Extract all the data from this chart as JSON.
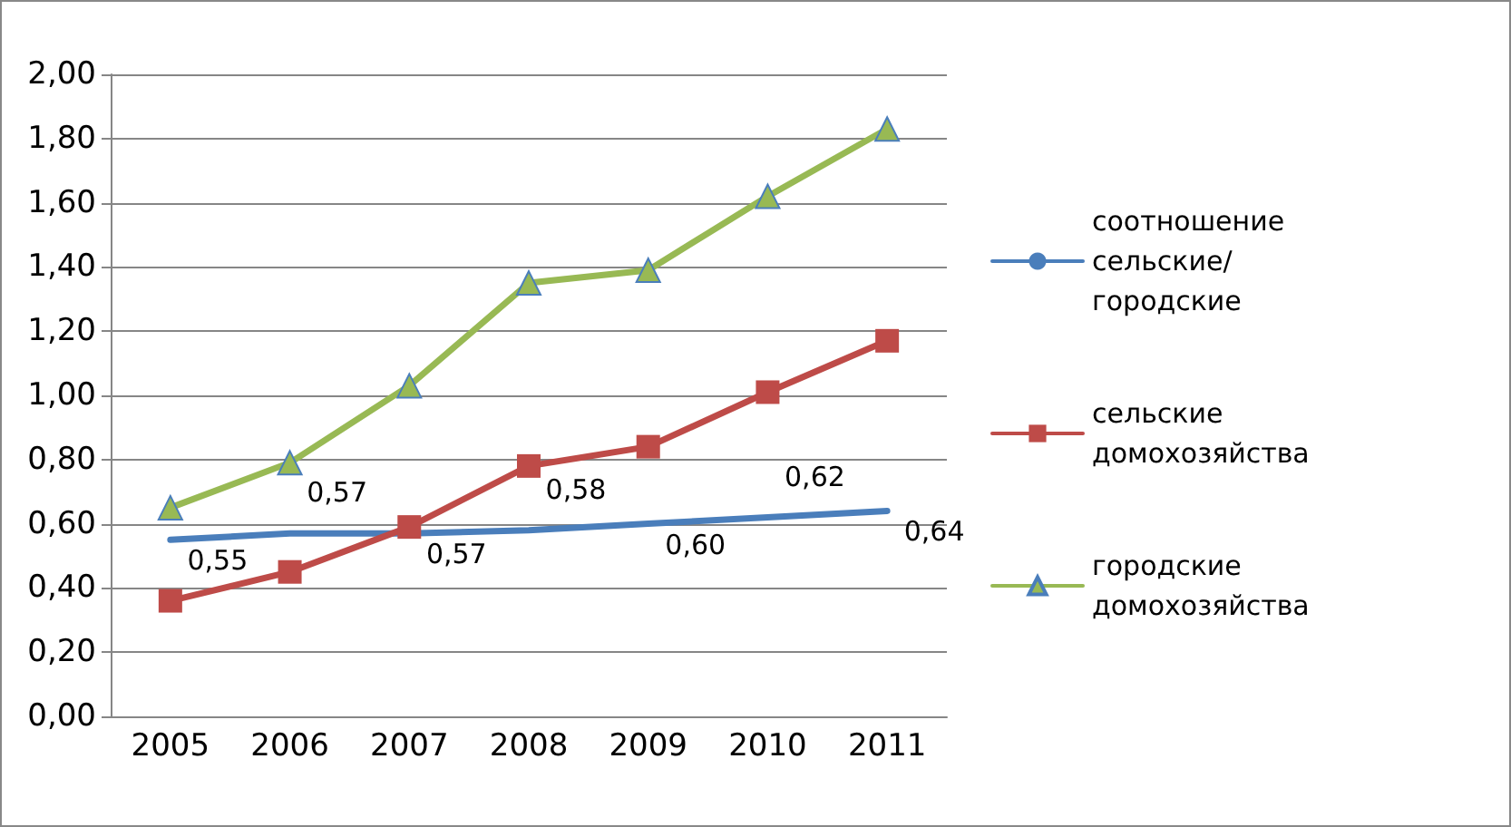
{
  "chart_data": {
    "type": "line",
    "categories": [
      "2005",
      "2006",
      "2007",
      "2008",
      "2009",
      "2010",
      "2011"
    ],
    "series": [
      {
        "name": "соотношение сельские/городские",
        "color": "#4a7ebb",
        "marker": "none",
        "values": [
          0.55,
          0.57,
          0.57,
          0.58,
          0.6,
          0.62,
          0.64
        ],
        "value_labels": [
          "0,55",
          "0,57",
          "0,57",
          "0,58",
          "0,60",
          "0,62",
          "0,64"
        ]
      },
      {
        "name": "сельские домохозяйства",
        "color": "#be4b48",
        "marker": "square",
        "values": [
          0.36,
          0.45,
          0.59,
          0.78,
          0.84,
          1.01,
          1.17
        ]
      },
      {
        "name": "городские домохозяйства",
        "color": "#98b954",
        "marker": "triangle",
        "values": [
          0.65,
          0.79,
          1.03,
          1.35,
          1.39,
          1.62,
          1.83
        ]
      }
    ],
    "ylim": [
      0,
      2
    ],
    "yticks": [
      {
        "value": 0,
        "label": "0,00"
      },
      {
        "value": 0.2,
        "label": "0,20"
      },
      {
        "value": 0.4,
        "label": "0,40"
      },
      {
        "value": 0.6,
        "label": "0,60"
      },
      {
        "value": 0.8,
        "label": "0,80"
      },
      {
        "value": 1,
        "label": "1,00"
      },
      {
        "value": 1.2,
        "label": "1,20"
      },
      {
        "value": 1.4,
        "label": "1,40"
      },
      {
        "value": 1.6,
        "label": "1,60"
      },
      {
        "value": 1.8,
        "label": "1,80"
      },
      {
        "value": 2,
        "label": "2,00"
      }
    ],
    "grid": "y",
    "legend": "right"
  }
}
